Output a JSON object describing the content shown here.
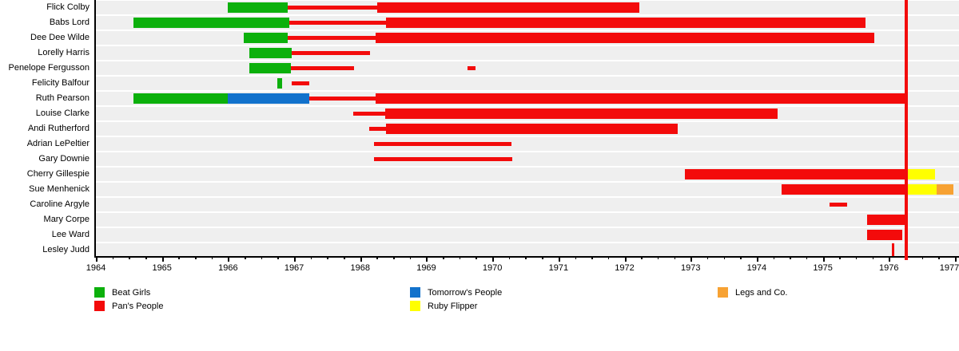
{
  "chart_data": {
    "type": "timeline",
    "title": "",
    "xlabel": "",
    "ylabel": "",
    "axis": {
      "x_min": 1964,
      "x_max": 1977,
      "tick_years": [
        1964,
        1965,
        1966,
        1967,
        1968,
        1969,
        1970,
        1971,
        1972,
        1973,
        1974,
        1975,
        1976,
        1977
      ],
      "minor_tick_interval_years": 0.25,
      "grid": false
    },
    "event_line_year": 1976.26,
    "groups": {
      "beat_girls": {
        "label": "Beat Girls",
        "color": "#0cb00c"
      },
      "pans_people": {
        "label": "Pan's People",
        "color": "#f30b0b"
      },
      "tomorrows_people": {
        "label": "Tomorrow's People",
        "color": "#1272cc"
      },
      "ruby_flipper": {
        "label": "Ruby Flipper",
        "color": "#ffff00"
      },
      "legs_and_co": {
        "label": "Legs and Co.",
        "color": "#f7a233"
      }
    },
    "legend_columns": [
      [
        "beat_girls",
        "pans_people"
      ],
      [
        "tomorrows_people",
        "ruby_flipper"
      ],
      [
        "legs_and_co"
      ]
    ],
    "rows": [
      {
        "name": "Flick Colby",
        "segments": [
          {
            "group": "beat_girls",
            "style": "bar",
            "start": 1966.0,
            "end": 1966.9
          },
          {
            "group": "pans_people",
            "style": "line",
            "start": 1966.9,
            "end": 1968.26
          },
          {
            "group": "pans_people",
            "style": "bar",
            "start": 1968.26,
            "end": 1972.22
          }
        ]
      },
      {
        "name": "Babs Lord",
        "segments": [
          {
            "group": "beat_girls",
            "style": "bar",
            "start": 1964.57,
            "end": 1966.93
          },
          {
            "group": "pans_people",
            "style": "line",
            "start": 1966.93,
            "end": 1968.39
          },
          {
            "group": "pans_people",
            "style": "bar",
            "start": 1968.39,
            "end": 1975.65
          }
        ]
      },
      {
        "name": "Dee Dee Wilde",
        "segments": [
          {
            "group": "beat_girls",
            "style": "bar",
            "start": 1966.24,
            "end": 1966.9
          },
          {
            "group": "pans_people",
            "style": "line",
            "start": 1966.9,
            "end": 1968.23
          },
          {
            "group": "pans_people",
            "style": "bar",
            "start": 1968.23,
            "end": 1975.78
          }
        ]
      },
      {
        "name": "Lorelly Harris",
        "segments": [
          {
            "group": "beat_girls",
            "style": "bar",
            "start": 1966.32,
            "end": 1966.96
          },
          {
            "group": "pans_people",
            "style": "line",
            "start": 1966.96,
            "end": 1968.15
          }
        ]
      },
      {
        "name": "Penelope Fergusson",
        "segments": [
          {
            "group": "beat_girls",
            "style": "bar",
            "start": 1966.32,
            "end": 1966.95
          },
          {
            "group": "pans_people",
            "style": "line",
            "start": 1966.95,
            "end": 1967.91
          },
          {
            "group": "pans_people",
            "style": "line",
            "start": 1969.62,
            "end": 1969.74
          }
        ]
      },
      {
        "name": "Felicity Balfour",
        "segments": [
          {
            "group": "beat_girls",
            "style": "bar",
            "start": 1966.75,
            "end": 1966.82
          },
          {
            "group": "pans_people",
            "style": "line",
            "start": 1966.96,
            "end": 1967.23
          }
        ]
      },
      {
        "name": "Ruth Pearson",
        "segments": [
          {
            "group": "beat_girls",
            "style": "bar",
            "start": 1964.57,
            "end": 1966.0
          },
          {
            "group": "tomorrows_people",
            "style": "bar",
            "start": 1966.0,
            "end": 1967.23
          },
          {
            "group": "pans_people",
            "style": "line",
            "start": 1967.23,
            "end": 1968.23
          },
          {
            "group": "pans_people",
            "style": "bar",
            "start": 1968.23,
            "end": 1976.26
          }
        ]
      },
      {
        "name": "Louise Clarke",
        "segments": [
          {
            "group": "pans_people",
            "style": "line",
            "start": 1967.89,
            "end": 1968.38
          },
          {
            "group": "pans_people",
            "style": "bar",
            "start": 1968.38,
            "end": 1974.32
          }
        ]
      },
      {
        "name": "Andi Rutherford",
        "segments": [
          {
            "group": "pans_people",
            "style": "line",
            "start": 1968.14,
            "end": 1968.39
          },
          {
            "group": "pans_people",
            "style": "bar",
            "start": 1968.39,
            "end": 1972.8
          }
        ]
      },
      {
        "name": "Adrian LePeltier",
        "segments": [
          {
            "group": "pans_people",
            "style": "line",
            "start": 1968.21,
            "end": 1970.29
          }
        ]
      },
      {
        "name": "Gary Downie",
        "segments": [
          {
            "group": "pans_people",
            "style": "line",
            "start": 1968.21,
            "end": 1970.3
          }
        ]
      },
      {
        "name": "Cherry Gillespie",
        "segments": [
          {
            "group": "pans_people",
            "style": "bar",
            "start": 1972.91,
            "end": 1976.26
          },
          {
            "group": "ruby_flipper",
            "style": "bar",
            "start": 1976.26,
            "end": 1976.7
          }
        ]
      },
      {
        "name": "Sue Menhenick",
        "segments": [
          {
            "group": "pans_people",
            "style": "bar",
            "start": 1974.38,
            "end": 1976.26
          },
          {
            "group": "ruby_flipper",
            "style": "bar",
            "start": 1976.26,
            "end": 1976.72
          },
          {
            "group": "legs_and_co",
            "style": "bar",
            "start": 1976.72,
            "end": 1976.98
          }
        ]
      },
      {
        "name": "Caroline Argyle",
        "segments": [
          {
            "group": "pans_people",
            "style": "line",
            "start": 1975.1,
            "end": 1975.37
          }
        ]
      },
      {
        "name": "Mary Corpe",
        "segments": [
          {
            "group": "pans_people",
            "style": "bar",
            "start": 1975.67,
            "end": 1976.26
          }
        ]
      },
      {
        "name": "Lee Ward",
        "segments": [
          {
            "group": "pans_people",
            "style": "bar",
            "start": 1975.67,
            "end": 1976.2
          }
        ]
      },
      {
        "name": "Lesley Judd",
        "segments": [
          {
            "group": "pans_people",
            "style": "tick",
            "start": 1976.05,
            "end": 1976.09
          }
        ]
      }
    ]
  }
}
